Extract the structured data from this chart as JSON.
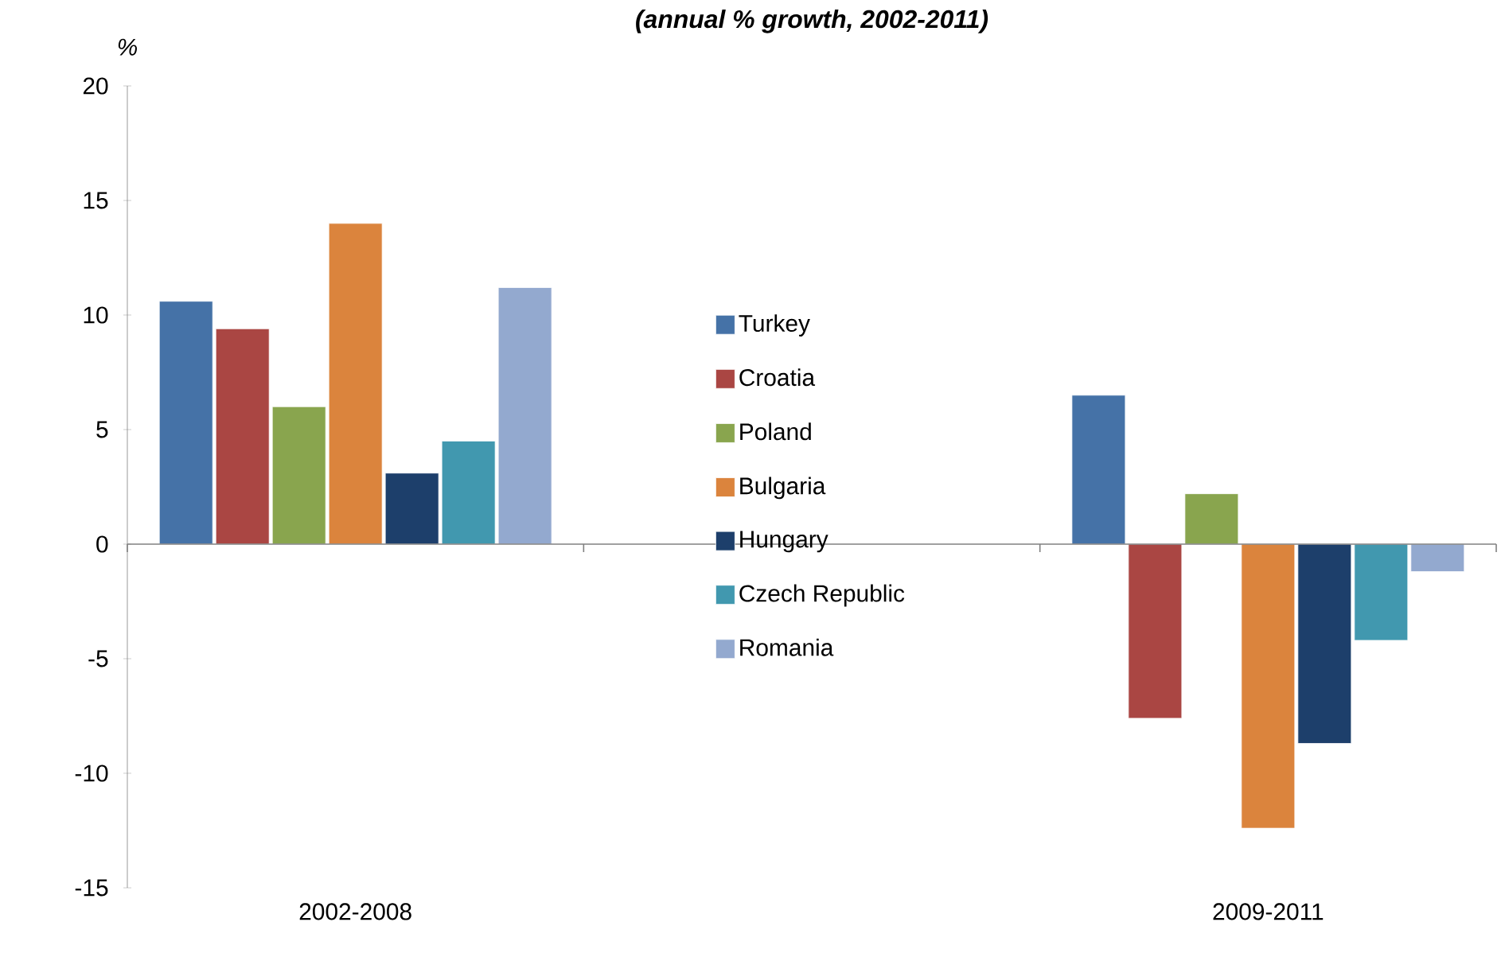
{
  "chart_data": {
    "type": "bar",
    "title": "(annual % growth, 2002-2011)",
    "ylabel": "%",
    "categories": [
      "2002-2008",
      null,
      "2009-2011"
    ],
    "series": [
      {
        "name": "Turkey",
        "color": "#4572a7",
        "values": [
          10.6,
          null,
          6.5
        ]
      },
      {
        "name": "Croatia",
        "color": "#aa4643",
        "values": [
          9.4,
          null,
          -7.6
        ]
      },
      {
        "name": "Poland",
        "color": "#89a54e",
        "values": [
          6.0,
          null,
          2.2
        ]
      },
      {
        "name": "Bulgaria",
        "color": "#db843d",
        "values": [
          14.0,
          null,
          -12.4
        ]
      },
      {
        "name": "Hungary",
        "color": "#1d3f6b",
        "values": [
          3.1,
          null,
          -8.7
        ]
      },
      {
        "name": "Czech Republic",
        "color": "#4198af",
        "values": [
          4.5,
          null,
          -4.2
        ]
      },
      {
        "name": "Romania",
        "color": "#93a9cf",
        "values": [
          11.2,
          null,
          -1.2
        ]
      }
    ],
    "ylim": [
      -15,
      20
    ],
    "yticks": [
      -15,
      -10,
      -5,
      0,
      5,
      10,
      15,
      20
    ],
    "legend": "center"
  }
}
